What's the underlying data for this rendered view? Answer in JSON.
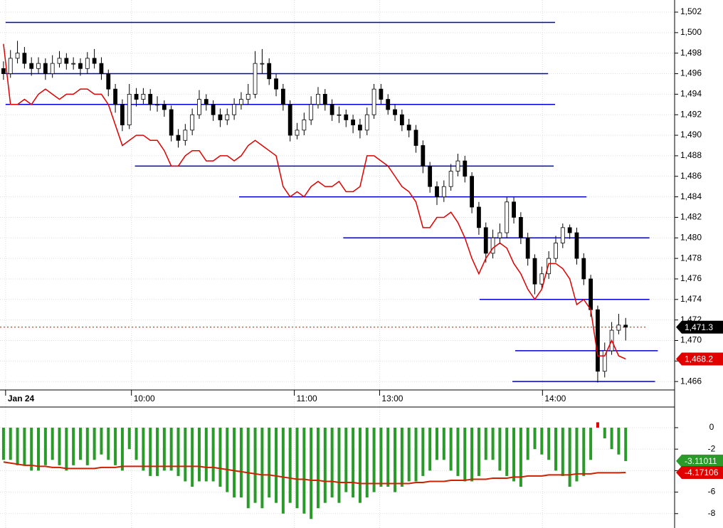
{
  "chart_data": [
    {
      "type": "candlestick",
      "xlim": [
        -0.5,
        96
      ],
      "ylim": [
        1465.18,
        1503.18
      ],
      "xticks": [
        {
          "value": 0.3,
          "label": "Jan 24"
        },
        {
          "value": 18.3,
          "label": "10:00"
        },
        {
          "value": 41.6,
          "label": "11:00"
        },
        {
          "value": 53.8,
          "label": "13:00"
        },
        {
          "value": 77.1,
          "label": "14:00"
        }
      ],
      "yticks": [
        {
          "value": 1466,
          "label": "1,466"
        },
        {
          "value": 1468,
          "label": "1,468"
        },
        {
          "value": 1470,
          "label": "1,470"
        },
        {
          "value": 1472,
          "label": "1,472"
        },
        {
          "value": 1474,
          "label": "1,474"
        },
        {
          "value": 1476,
          "label": "1,476"
        },
        {
          "value": 1478,
          "label": "1,478"
        },
        {
          "value": 1480,
          "label": "1,480"
        },
        {
          "value": 1482,
          "label": "1,482"
        },
        {
          "value": 1484,
          "label": "1,484"
        },
        {
          "value": 1486,
          "label": "1,486"
        },
        {
          "value": 1488,
          "label": "1,488"
        },
        {
          "value": 1490,
          "label": "1,490"
        },
        {
          "value": 1492,
          "label": "1,492"
        },
        {
          "value": 1494,
          "label": "1,494"
        },
        {
          "value": 1496,
          "label": "1,496"
        },
        {
          "value": 1498,
          "label": "1,498"
        },
        {
          "value": 1500,
          "label": "1,500"
        },
        {
          "value": 1502,
          "label": "1,502"
        }
      ],
      "grid": true,
      "open": [
        1496.5,
        1496,
        1497.5,
        1498,
        1497,
        1496.5,
        1497,
        1496,
        1497,
        1497.5,
        1497,
        1497,
        1496.5,
        1497.5,
        1497,
        1496,
        1494.5,
        1493,
        1491,
        1494,
        1493.5,
        1494,
        1493,
        1493,
        1492.5,
        1490,
        1489.5,
        1490.5,
        1492,
        1493.5,
        1493,
        1492,
        1491.5,
        1492,
        1493,
        1493.5,
        1494,
        1497,
        1497,
        1495.5,
        1494.5,
        1493,
        1490,
        1490.5,
        1491.5,
        1493,
        1494,
        1493,
        1492,
        1492,
        1491.5,
        1491,
        1490.5,
        1492,
        1494.5,
        1493.5,
        1492.5,
        1492,
        1491,
        1490.5,
        1489,
        1487,
        1485,
        1484,
        1485,
        1486.5,
        1487.5,
        1486,
        1483,
        1481,
        1478.5,
        1480,
        1480.5,
        1483.5,
        1482,
        1480,
        1478,
        1475.5,
        1476.5,
        1478,
        1479.5,
        1481,
        1480.5,
        1478,
        1476,
        1473,
        1467,
        1469,
        1471,
        1471.5
      ],
      "high": [
        1497.2,
        1498.3,
        1499.2,
        1498.6,
        1497.6,
        1497.6,
        1497.5,
        1497.8,
        1498.2,
        1498,
        1497.6,
        1497.5,
        1498.1,
        1498.4,
        1497.6,
        1496.4,
        1495,
        1493.5,
        1495,
        1494.6,
        1494.6,
        1494.5,
        1493.8,
        1493.4,
        1492.9,
        1490.6,
        1491.1,
        1492.6,
        1494.4,
        1494,
        1493.4,
        1492.6,
        1492.6,
        1493.6,
        1494.2,
        1495,
        1498.2,
        1498.4,
        1497.5,
        1496,
        1495,
        1493.4,
        1491.2,
        1492.2,
        1493.8,
        1494.7,
        1494.5,
        1493.5,
        1492.8,
        1492.5,
        1492,
        1491.6,
        1492.7,
        1495,
        1495,
        1494,
        1493,
        1492.5,
        1491.6,
        1491,
        1489.5,
        1487.4,
        1485.5,
        1485.6,
        1487.2,
        1488.2,
        1488,
        1486.4,
        1483.5,
        1481.5,
        1480.8,
        1481.4,
        1484,
        1484,
        1482.5,
        1480.5,
        1478.4,
        1477.2,
        1478.7,
        1480.2,
        1481.4,
        1481.3,
        1481,
        1478.5,
        1476.4,
        1473.4,
        1469.8,
        1471.8,
        1472.6,
        1472.2
      ],
      "low": [
        1495.4,
        1495.6,
        1497,
        1496.5,
        1495.8,
        1496,
        1495.4,
        1495.6,
        1496.6,
        1496.4,
        1496.4,
        1495.8,
        1496,
        1496.5,
        1495.4,
        1493.8,
        1492.2,
        1490.4,
        1490.6,
        1492.8,
        1493,
        1492.4,
        1492.3,
        1491.8,
        1489.4,
        1488.8,
        1489,
        1490,
        1491.6,
        1492.4,
        1491.4,
        1490.8,
        1491,
        1491.5,
        1492.5,
        1493,
        1493.6,
        1496,
        1494.9,
        1493.8,
        1492.4,
        1489.4,
        1489.6,
        1490,
        1491,
        1492.6,
        1492.4,
        1491.4,
        1491.2,
        1490.8,
        1490.2,
        1489.7,
        1490,
        1491.6,
        1493,
        1492,
        1491.4,
        1490.4,
        1489.8,
        1488.3,
        1486.3,
        1484.4,
        1483.2,
        1483.5,
        1484.6,
        1486,
        1485.4,
        1482.4,
        1480.3,
        1477.6,
        1478,
        1479.4,
        1480,
        1481.4,
        1479.4,
        1477.3,
        1474.5,
        1475,
        1476,
        1477.6,
        1479,
        1479.9,
        1477.4,
        1475.4,
        1472.3,
        1465.9,
        1466.4,
        1468.6,
        1470.6,
        1470
      ],
      "close": [
        1496,
        1497.5,
        1498,
        1497,
        1496.5,
        1497,
        1496,
        1497,
        1497.5,
        1497,
        1497,
        1496.5,
        1497.5,
        1497,
        1496,
        1494.5,
        1493,
        1491,
        1494,
        1493.5,
        1494,
        1493,
        1493,
        1492.5,
        1490,
        1489.5,
        1490.5,
        1492,
        1493.5,
        1493,
        1492,
        1491.5,
        1492,
        1493,
        1493.5,
        1494,
        1497,
        1497,
        1495.5,
        1494.5,
        1493,
        1490,
        1490.5,
        1491.5,
        1493,
        1494,
        1493,
        1492,
        1492,
        1491.5,
        1491,
        1490.5,
        1492,
        1494.5,
        1493.5,
        1492.5,
        1492,
        1491,
        1490.5,
        1489,
        1487,
        1485,
        1484,
        1485,
        1486.5,
        1487.5,
        1486,
        1483,
        1481,
        1478.5,
        1480,
        1480.5,
        1483.5,
        1482,
        1480,
        1478,
        1475.5,
        1476.5,
        1478,
        1479.5,
        1481,
        1480.5,
        1478,
        1476,
        1473,
        1467,
        1469,
        1471,
        1471.5,
        1471.3
      ],
      "up_color": "#ffffff",
      "down_color": "#000000",
      "series": [
        {
          "color": "#e00000",
          "values": [
            1498.9,
            1493,
            1493,
            1493.5,
            1493,
            1494,
            1494.5,
            1494,
            1493.5,
            1494,
            1494,
            1494.5,
            1494.5,
            1494,
            1494,
            1493,
            1491,
            1489,
            1489.5,
            1490,
            1490,
            1489.5,
            1489.5,
            1488.5,
            1487,
            1487,
            1488,
            1488.5,
            1488.5,
            1487.5,
            1487.5,
            1488,
            1488,
            1487.5,
            1488,
            1489,
            1489.5,
            1489,
            1488.5,
            1488,
            1485,
            1484,
            1484.5,
            1484,
            1485,
            1485.5,
            1485,
            1485,
            1485.5,
            1484.5,
            1484.5,
            1485,
            1488,
            1488,
            1487.5,
            1487,
            1486,
            1485,
            1484.5,
            1483.5,
            1481,
            1481,
            1482,
            1482,
            1482.5,
            1481.5,
            1480,
            1478,
            1476.5,
            1478,
            1479,
            1479.5,
            1479,
            1477.5,
            1476.5,
            1475,
            1474,
            1475,
            1477.5,
            1477.5,
            1477,
            1476,
            1473.5,
            1474,
            1473,
            1468.5,
            1468.5,
            1470,
            1468.5,
            1468.2
          ]
        }
      ],
      "levels_color": "#0000cc",
      "levels": [
        {
          "value": 1501,
          "from": 0.3,
          "to": 78.9
        },
        {
          "value": 1496,
          "from": 0.3,
          "to": 77.9
        },
        {
          "value": 1493,
          "from": 0.3,
          "to": 78.9
        },
        {
          "value": 1487,
          "from": 18.8,
          "to": 78.7
        },
        {
          "value": 1484,
          "from": 33.7,
          "to": 83.4
        },
        {
          "value": 1480,
          "from": 48.6,
          "to": 92.4
        },
        {
          "value": 1474,
          "from": 68.1,
          "to": 92.4
        },
        {
          "value": 1469,
          "from": 73.2,
          "to": 93.6
        },
        {
          "value": 1466,
          "from": 72.8,
          "to": 93.2
        }
      ],
      "last_price": {
        "value": 1471.3,
        "label": "1,471.3",
        "color": "#000000"
      },
      "ma_last": {
        "value": 1468.2,
        "label": "1,468.2",
        "color": "#e00000"
      }
    },
    {
      "type": "histogram-bar",
      "xlim": [
        -0.5,
        96
      ],
      "ylim": [
        -9.34,
        1.72
      ],
      "yticks": [
        -8,
        -6,
        -4,
        -2,
        0
      ],
      "pos_color": "#e00000",
      "neg_color": "#2a9a2a",
      "values": [
        -3,
        -3,
        -3.5,
        -3.5,
        -4,
        -4,
        -3.5,
        -3,
        -3.5,
        -4,
        -3.5,
        -3,
        -3.5,
        -3,
        -2.5,
        -3,
        -3.5,
        -4,
        -2,
        -3,
        -4,
        -4.5,
        -4.5,
        -4,
        -4,
        -4.5,
        -5,
        -5.5,
        -5,
        -5,
        -5,
        -5.5,
        -6,
        -6.5,
        -6.5,
        -7.5,
        -7,
        -7.5,
        -6.5,
        -7,
        -8,
        -7,
        -7.5,
        -8,
        -8.5,
        -7.5,
        -7,
        -6.5,
        -7,
        -6,
        -6.5,
        -7,
        -6.5,
        -6,
        -5.5,
        -5.5,
        -6,
        -5.5,
        -5,
        -5,
        -4.5,
        -4,
        -3,
        -3,
        -4,
        -4.5,
        -5,
        -5,
        -4.5,
        -3,
        -3,
        -4,
        -4.5,
        -5,
        -5.5,
        -3,
        -2,
        -2.5,
        -3,
        -4,
        -4.5,
        -5.5,
        -5,
        -4.5,
        -3,
        0.5,
        -1,
        -2,
        -2.5,
        -3.11011
      ],
      "signal": {
        "color": "#cc2200",
        "values": [
          -3.2,
          -3.3,
          -3.4,
          -3.5,
          -3.5,
          -3.6,
          -3.6,
          -3.7,
          -3.7,
          -3.8,
          -3.8,
          -3.8,
          -3.8,
          -3.8,
          -3.7,
          -3.7,
          -3.7,
          -3.6,
          -3.6,
          -3.6,
          -3.6,
          -3.6,
          -3.6,
          -3.6,
          -3.6,
          -3.6,
          -3.6,
          -3.6,
          -3.6,
          -3.7,
          -3.7,
          -3.8,
          -3.9,
          -4.0,
          -4.1,
          -4.2,
          -4.3,
          -4.4,
          -4.4,
          -4.5,
          -4.6,
          -4.7,
          -4.8,
          -4.8,
          -4.9,
          -4.9,
          -5.0,
          -5.0,
          -5.1,
          -5.1,
          -5.1,
          -5.2,
          -5.2,
          -5.2,
          -5.2,
          -5.2,
          -5.2,
          -5.2,
          -5.2,
          -5.1,
          -5.1,
          -5.0,
          -5.0,
          -5.0,
          -4.9,
          -4.9,
          -4.9,
          -4.8,
          -4.8,
          -4.8,
          -4.7,
          -4.7,
          -4.7,
          -4.6,
          -4.6,
          -4.5,
          -4.5,
          -4.5,
          -4.4,
          -4.4,
          -4.4,
          -4.4,
          -4.3,
          -4.3,
          -4.3,
          -4.2,
          -4.2,
          -4.2,
          -4.2,
          -4.17106
        ]
      },
      "hist_last": {
        "value": -3.11011,
        "label": "-3.11011",
        "color": "#2a9a2a"
      },
      "signal_last": {
        "value": -4.17106,
        "label": "-4.17106",
        "color": "#e00000"
      }
    }
  ]
}
